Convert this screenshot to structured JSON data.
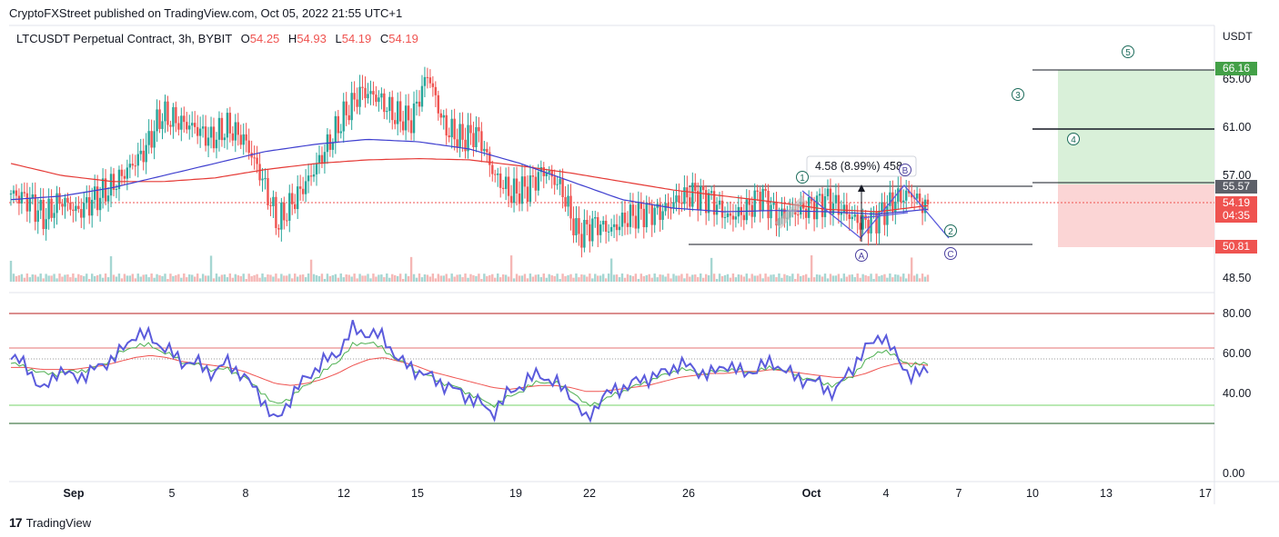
{
  "header": {
    "published": "CryptoFXStreet published on TradingView.com, Oct 05, 2022 21:55 UTC+1"
  },
  "symbol": {
    "name": "LTCUSDT Perpetual Contract, 3h, BYBIT",
    "o_label": "O",
    "o_value": "54.25",
    "h_label": "H",
    "h_value": "54.93",
    "l_label": "L",
    "l_value": "54.19",
    "c_label": "C",
    "c_value": "54.19"
  },
  "currency": "USDT",
  "price_tags": {
    "target": "66.16",
    "level": "55.57",
    "last": "54.19",
    "countdown": "04:35",
    "stop": "50.81"
  },
  "measure_label": "4.58 (8.99%) 458",
  "wave_labels": [
    "1",
    "2",
    "3",
    "4",
    "5",
    "A",
    "B",
    "C"
  ],
  "footer": {
    "brand": "TradingView"
  },
  "colors": {
    "up": "#26a69a",
    "down": "#ef5350",
    "ma_blue": "#3f3fcf",
    "ma_red": "#e53935",
    "rsi": "#5b5bdc",
    "rsi_signal": "#4caf50",
    "rsi_slow": "#ef5350",
    "target_zone": "#d9f0d9",
    "stop_zone": "#fbd5d5",
    "wave": "#1b6b5a"
  },
  "chart_data": [
    {
      "type": "candlestick",
      "title": "LTCUSDT Perpetual Contract, 3h, BYBIT",
      "x_ticks": [
        "Sep",
        "5",
        "8",
        "12",
        "15",
        "19",
        "22",
        "26",
        "Oct",
        "4",
        "7",
        "10",
        "13",
        "17"
      ],
      "y_ticks": [
        48.5,
        57.0,
        61.0,
        65.0
      ],
      "ylim": [
        48.5,
        67.0
      ],
      "ohlc_last": {
        "open": 54.25,
        "high": 54.93,
        "low": 54.19,
        "close": 54.19
      },
      "close_path": [
        55.5,
        55.0,
        53.5,
        55.0,
        54.0,
        55.0,
        56.0,
        57.5,
        59.0,
        62.0,
        61.5,
        61.0,
        60.0,
        61.0,
        60.0,
        57.0,
        53.0,
        55.0,
        57.0,
        59.5,
        62.0,
        64.0,
        63.5,
        62.0,
        61.5,
        65.5,
        61.0,
        60.0,
        60.5,
        57.0,
        55.5,
        56.0,
        57.5,
        56.0,
        52.0,
        53.0,
        52.5,
        53.5,
        54.0,
        54.0,
        55.0,
        55.5,
        55.0,
        53.5,
        54.0,
        55.5,
        53.5,
        54.0,
        54.5,
        55.0,
        54.0,
        53.0,
        53.5,
        55.0,
        55.5,
        54.19
      ],
      "moving_averages": [
        {
          "name": "",
          "color": "blue",
          "values": [
            55.0,
            55.3,
            56.0,
            57.0,
            58.0,
            59.0,
            59.6,
            60.0,
            59.8,
            59.2,
            58.0,
            56.5,
            55.0,
            54.3,
            54.0,
            54.1,
            54.0,
            53.8,
            54.2
          ]
        },
        {
          "name": "",
          "color": "red",
          "values": [
            58.0,
            57.0,
            56.5,
            56.5,
            56.8,
            57.5,
            58.0,
            58.3,
            58.4,
            58.3,
            57.8,
            57.2,
            56.5,
            55.8,
            55.3,
            54.8,
            54.2,
            54.0,
            54.5
          ]
        }
      ],
      "annotations": {
        "horizontal_levels": [
          55.57,
          50.81
        ],
        "target": 66.16,
        "stop": 50.81,
        "current": 54.19,
        "measure": "4.58 (8.99%) 458"
      }
    },
    {
      "type": "line",
      "title": "",
      "y_ticks": [
        0.0,
        40.0,
        60.0,
        80.0
      ],
      "ylim": [
        0,
        85
      ],
      "levels": [
        80,
        65,
        60,
        40,
        32
      ],
      "series": [
        {
          "name": "",
          "values": [
            57,
            55,
            40,
            52,
            48,
            50,
            55,
            60,
            70,
            68,
            62,
            56,
            55,
            50,
            56,
            48,
            40,
            25,
            38,
            48,
            55,
            60,
            72,
            70,
            68,
            56,
            52,
            48,
            44,
            40,
            36,
            30,
            40,
            45,
            50,
            45,
            40,
            26,
            38,
            42,
            45,
            48,
            50,
            55,
            52,
            49,
            55,
            50,
            52,
            56,
            50,
            47,
            45,
            40,
            52,
            62,
            70,
            58,
            48,
            52
          ]
        },
        {
          "name": "",
          "values": [
            55,
            53,
            50,
            50,
            51,
            52,
            55,
            60,
            64,
            64,
            60,
            56,
            54,
            52,
            52,
            48,
            42,
            34,
            38,
            44,
            50,
            56,
            64,
            66,
            62,
            56,
            52,
            48,
            45,
            42,
            38,
            34,
            38,
            42,
            46,
            45,
            42,
            34,
            36,
            40,
            43,
            46,
            49,
            52,
            51,
            50,
            52,
            51,
            51,
            53,
            51,
            48,
            46,
            44,
            48,
            56,
            62,
            58,
            54,
            55
          ]
        },
        {
          "name": "",
          "values": [
            53,
            53,
            52,
            52,
            52,
            53,
            54,
            56,
            58,
            59,
            58,
            56,
            55,
            54,
            53,
            51,
            48,
            45,
            44,
            45,
            47,
            50,
            54,
            57,
            58,
            56,
            54,
            51,
            49,
            47,
            45,
            43,
            42,
            43,
            44,
            44,
            43,
            41,
            41,
            42,
            43,
            44,
            46,
            48,
            49,
            50,
            50,
            51,
            51,
            52,
            51,
            50,
            49,
            48,
            48,
            50,
            53,
            55,
            55,
            54
          ]
        }
      ]
    }
  ]
}
